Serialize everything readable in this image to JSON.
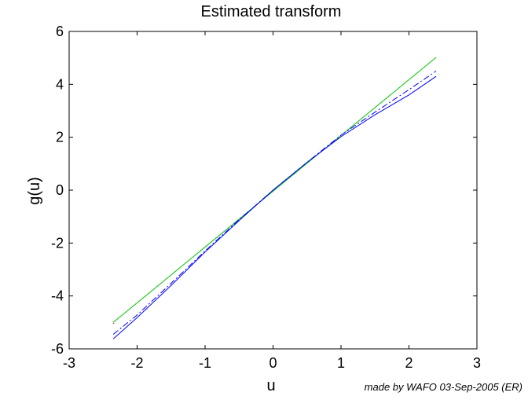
{
  "chart_data": {
    "type": "line",
    "title": "Estimated transform",
    "xlabel": "u",
    "ylabel": "g(u)",
    "xlim": [
      -3,
      3
    ],
    "ylim": [
      -6,
      6
    ],
    "xticks": [
      -3,
      -2,
      -1,
      0,
      1,
      2,
      3
    ],
    "yticks": [
      -6,
      -4,
      -2,
      0,
      2,
      4,
      6
    ],
    "grid": false,
    "series": [
      {
        "color": "#00c000",
        "style": "solid",
        "x": [
          -2.35,
          2.4
        ],
        "y": [
          -5.0,
          5.02
        ]
      },
      {
        "color": "#ff0000",
        "style": "dotted",
        "x": [
          -2.35,
          -2.33
        ],
        "y": [
          -5.05,
          -4.98
        ]
      },
      {
        "color": "#0000ff",
        "style": "dashdot",
        "x": [
          -2.35,
          -2.0,
          -1.5,
          -1.0,
          -0.5,
          0.0,
          0.5,
          1.0,
          1.5,
          2.0,
          2.4
        ],
        "y": [
          -5.45,
          -4.72,
          -3.52,
          -2.3,
          -1.12,
          0.0,
          1.05,
          2.08,
          2.95,
          3.8,
          4.5
        ]
      },
      {
        "color": "#0000ff",
        "style": "solid",
        "x": [
          -2.35,
          -2.0,
          -1.5,
          -1.0,
          -0.5,
          0.0,
          0.5,
          1.0,
          1.5,
          2.0,
          2.4
        ],
        "y": [
          -5.62,
          -4.82,
          -3.6,
          -2.34,
          -1.15,
          0.0,
          1.05,
          2.02,
          2.85,
          3.6,
          4.3
        ]
      }
    ]
  },
  "footnote": "made by WAFO 03-Sep-2005 (ER)"
}
